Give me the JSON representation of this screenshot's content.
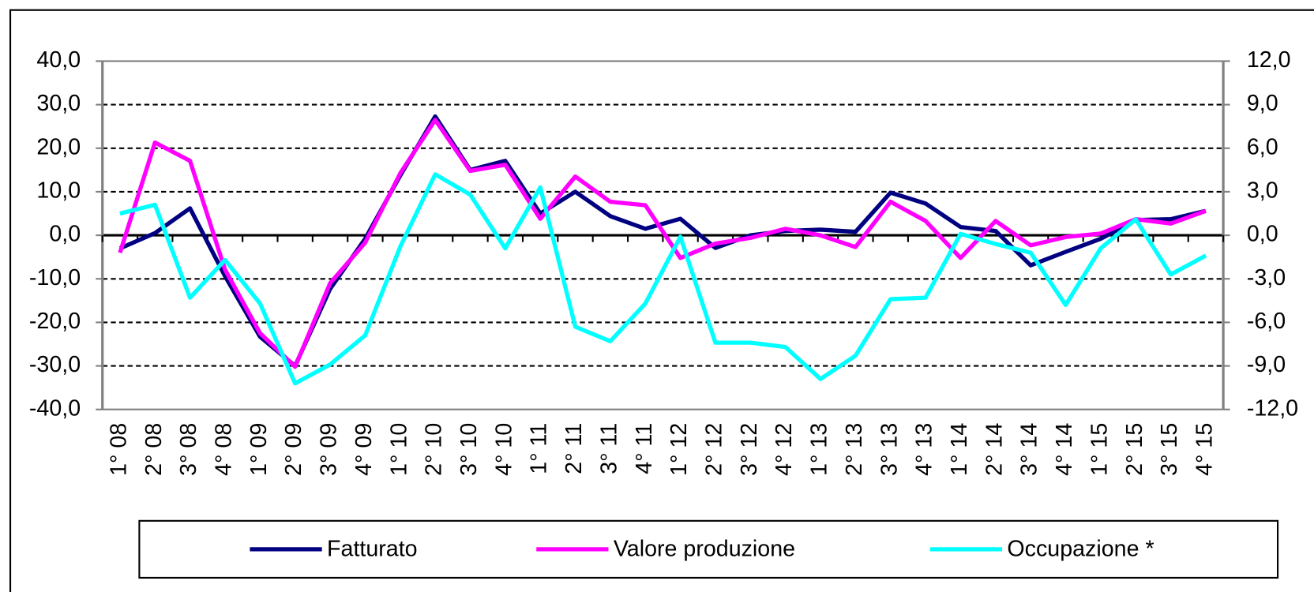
{
  "chart_data": {
    "type": "line",
    "categories": [
      "1° 08",
      "2° 08",
      "3° 08",
      "4° 08",
      "1° 09",
      "2° 09",
      "3° 09",
      "4° 09",
      "1° 10",
      "2° 10",
      "3° 10",
      "4° 10",
      "1° 11",
      "2° 11",
      "3° 11",
      "4° 11",
      "1° 12",
      "2° 12",
      "3° 12",
      "4° 12",
      "1° 13",
      "2° 13",
      "3° 13",
      "4° 13",
      "1° 14",
      "2° 14",
      "3° 14",
      "4° 14",
      "1° 15",
      "2° 15",
      "3° 15",
      "4° 15"
    ],
    "series": [
      {
        "name": "Fatturato",
        "color": "#000080",
        "values": [
          -3.0,
          0.5,
          6.2,
          -9.4,
          -23.3,
          -30.0,
          -12.3,
          -0.8,
          13.7,
          27.3,
          15.0,
          17.1,
          5.0,
          10.0,
          4.4,
          1.5,
          3.8,
          -2.9,
          0.0,
          1.0,
          1.3,
          0.8,
          9.8,
          7.3,
          1.9,
          1.0,
          -6.9,
          -3.8,
          -0.8,
          3.5,
          3.7,
          5.6
        ]
      },
      {
        "name": "Valore produzione",
        "color": "#ff00ff",
        "values": [
          -4.0,
          21.3,
          17.1,
          -7.9,
          -22.5,
          -30.2,
          -11.0,
          -1.7,
          14.2,
          26.5,
          14.8,
          16.2,
          3.8,
          13.5,
          7.7,
          6.9,
          -5.2,
          -1.9,
          -0.6,
          1.5,
          0.0,
          -2.7,
          7.7,
          3.3,
          -5.2,
          3.3,
          -2.3,
          -0.4,
          0.4,
          3.7,
          2.7,
          5.6
        ]
      },
      {
        "name": "Occupazione *",
        "color": "#00ffff",
        "axis": "y2",
        "values": [
          1.5,
          2.1,
          -4.3,
          -1.7,
          -4.7,
          -10.2,
          -8.9,
          -6.9,
          -0.8,
          4.2,
          2.8,
          -0.9,
          3.3,
          -6.3,
          -7.3,
          -4.7,
          -0.1,
          -7.4,
          -7.4,
          -7.7,
          -9.9,
          -8.3,
          -4.4,
          -4.3,
          0.1,
          -0.6,
          -1.2,
          -4.8,
          -0.9,
          1.1,
          -2.7,
          -1.4
        ]
      }
    ],
    "ylim": [
      -40,
      40
    ],
    "yticks": [
      {
        "value": -40,
        "label": "-40,0"
      },
      {
        "value": -30,
        "label": "-30,0"
      },
      {
        "value": -20,
        "label": "-20,0"
      },
      {
        "value": -10,
        "label": "-10,0"
      },
      {
        "value": 0,
        "label": "0,0"
      },
      {
        "value": 10,
        "label": "10,0"
      },
      {
        "value": 20,
        "label": "20,0"
      },
      {
        "value": 30,
        "label": "30,0"
      },
      {
        "value": 40,
        "label": "40,0"
      }
    ],
    "y2lim": [
      -12,
      12
    ],
    "y2ticks": [
      {
        "value": -12,
        "label": "-12,0"
      },
      {
        "value": -9,
        "label": "-9,0"
      },
      {
        "value": -6,
        "label": "-6,0"
      },
      {
        "value": -3,
        "label": "-3,0"
      },
      {
        "value": 0,
        "label": "0,0"
      },
      {
        "value": 3,
        "label": "3,0"
      },
      {
        "value": 6,
        "label": "6,0"
      },
      {
        "value": 9,
        "label": "9,0"
      },
      {
        "value": 12,
        "label": "12,0"
      }
    ],
    "grid": true,
    "legend": "bottom"
  }
}
